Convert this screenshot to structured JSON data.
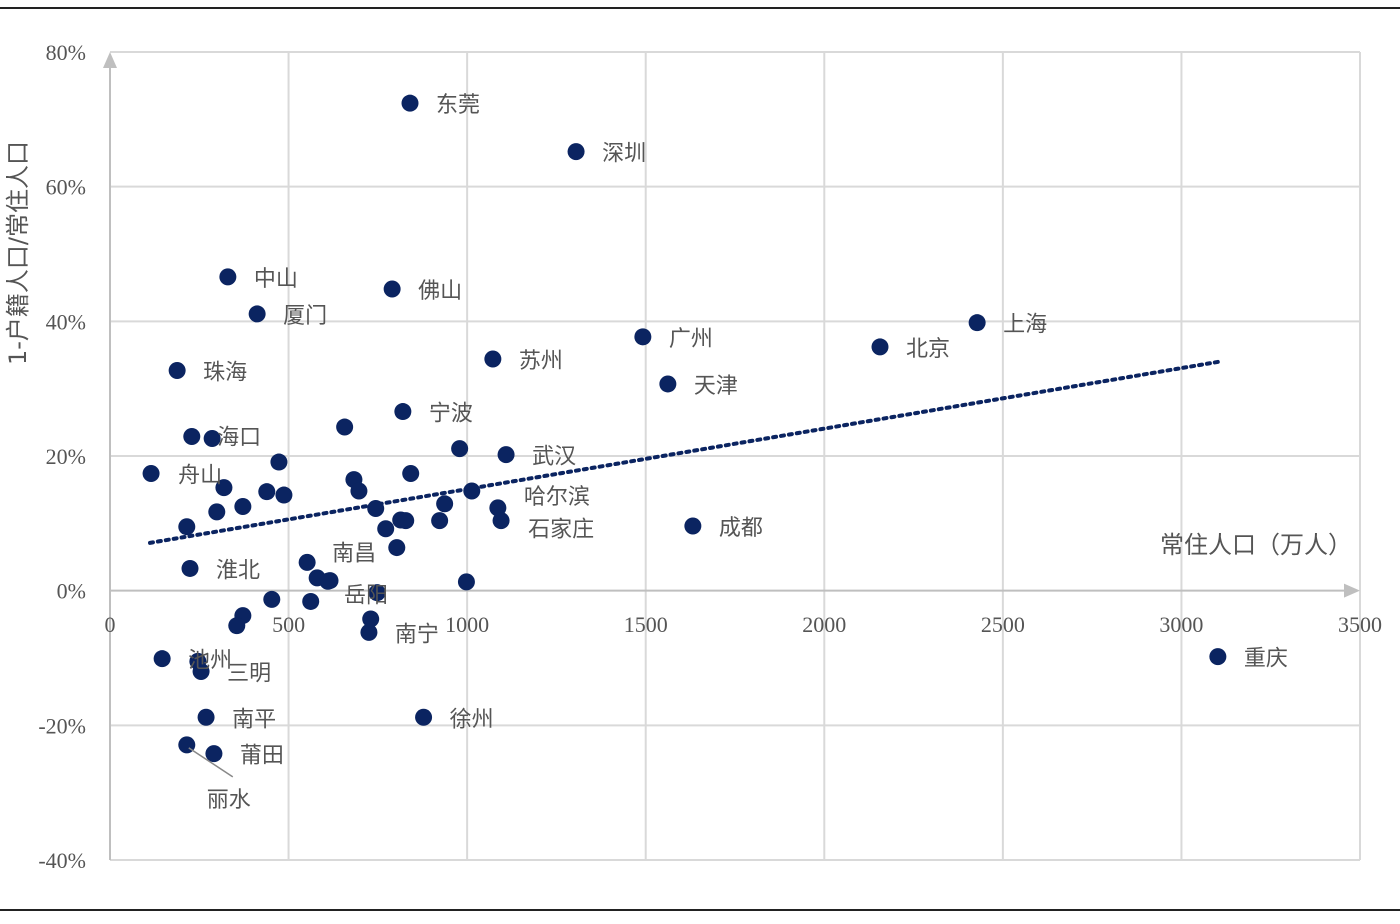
{
  "chart_data": {
    "type": "scatter",
    "title": "",
    "xlabel": "常住人口（万人）",
    "ylabel": "1-户籍人口/常住人口",
    "xlim": [
      0,
      3500
    ],
    "ylim": [
      -40,
      80
    ],
    "x_ticks": [
      "0",
      "500",
      "1000",
      "1500",
      "2000",
      "2500",
      "3000",
      "3500"
    ],
    "x_tick_values": [
      0,
      500,
      1000,
      1500,
      2000,
      2500,
      3000,
      3500
    ],
    "y_ticks": [
      "-40%",
      "-20%",
      "0%",
      "20%",
      "40%",
      "60%",
      "80%"
    ],
    "y_tick_values": [
      -40,
      -20,
      0,
      20,
      40,
      60,
      80
    ],
    "grid": true,
    "marker_color": "#0b2461",
    "grid_color": "#d9d9d9",
    "axis_color": "#bfbfbf",
    "trendline": {
      "type": "linear",
      "style": "dotted",
      "x": [
        112,
        3105
      ],
      "y": [
        7.1,
        34.0
      ]
    },
    "points": [
      {
        "name": "东莞",
        "x": 840,
        "y": 72.4
      },
      {
        "name": "深圳",
        "x": 1305,
        "y": 65.2
      },
      {
        "name": "中山",
        "x": 330,
        "y": 46.6
      },
      {
        "name": "佛山",
        "x": 790,
        "y": 44.8
      },
      {
        "name": "厦门",
        "x": 412,
        "y": 41.1
      },
      {
        "name": "广州",
        "x": 1492,
        "y": 37.7
      },
      {
        "name": "上海",
        "x": 2428,
        "y": 39.8
      },
      {
        "name": "北京",
        "x": 2156,
        "y": 36.2
      },
      {
        "name": "苏州",
        "x": 1072,
        "y": 34.4
      },
      {
        "name": "珠海",
        "x": 188,
        "y": 32.7
      },
      {
        "name": "天津",
        "x": 1562,
        "y": 30.7
      },
      {
        "name": "宁波",
        "x": 820,
        "y": 26.6
      },
      {
        "name": "海口",
        "x": 286,
        "y": 22.6
      },
      {
        "name": "武汉",
        "x": 1109,
        "y": 20.2
      },
      {
        "name": "舟山",
        "x": 115,
        "y": 17.4
      },
      {
        "name": "哈尔滨",
        "x": 1086,
        "y": 12.3
      },
      {
        "name": "石家庄",
        "x": 1095,
        "y": 10.4
      },
      {
        "name": "成都",
        "x": 1632,
        "y": 9.6
      },
      {
        "name": "淮北",
        "x": 224,
        "y": 3.3
      },
      {
        "name": "南昌",
        "x": 552,
        "y": 4.2
      },
      {
        "name": "岳阳",
        "x": 616,
        "y": 1.5
      },
      {
        "name": "南宁",
        "x": 725,
        "y": -6.2
      },
      {
        "name": "池州",
        "x": 146,
        "y": -10.1
      },
      {
        "name": "三明",
        "x": 255,
        "y": -12.0
      },
      {
        "name": "重庆",
        "x": 3102,
        "y": -9.8
      },
      {
        "name": "南平",
        "x": 269,
        "y": -18.8
      },
      {
        "name": "徐州",
        "x": 878,
        "y": -18.8
      },
      {
        "name": "莆田",
        "x": 291,
        "y": -24.2
      },
      {
        "name": "丽水",
        "x": 215,
        "y": -22.9
      },
      {
        "name": "",
        "x": 229,
        "y": 22.9
      },
      {
        "name": "",
        "x": 473,
        "y": 19.1
      },
      {
        "name": "",
        "x": 657,
        "y": 24.3
      },
      {
        "name": "",
        "x": 979,
        "y": 21.1
      },
      {
        "name": "",
        "x": 319,
        "y": 15.3
      },
      {
        "name": "",
        "x": 439,
        "y": 14.7
      },
      {
        "name": "",
        "x": 487,
        "y": 14.2
      },
      {
        "name": "",
        "x": 299,
        "y": 11.7
      },
      {
        "name": "",
        "x": 372,
        "y": 12.5
      },
      {
        "name": "",
        "x": 215,
        "y": 9.5
      },
      {
        "name": "",
        "x": 683,
        "y": 16.5
      },
      {
        "name": "",
        "x": 697,
        "y": 14.8
      },
      {
        "name": "",
        "x": 842,
        "y": 17.4
      },
      {
        "name": "",
        "x": 744,
        "y": 12.2
      },
      {
        "name": "",
        "x": 937,
        "y": 12.9
      },
      {
        "name": "",
        "x": 1013,
        "y": 14.8
      },
      {
        "name": "",
        "x": 772,
        "y": 9.2
      },
      {
        "name": "",
        "x": 814,
        "y": 10.5
      },
      {
        "name": "",
        "x": 828,
        "y": 10.4
      },
      {
        "name": "",
        "x": 923,
        "y": 10.4
      },
      {
        "name": "",
        "x": 803,
        "y": 6.4
      },
      {
        "name": "",
        "x": 580,
        "y": 1.9
      },
      {
        "name": "",
        "x": 610,
        "y": 1.4
      },
      {
        "name": "",
        "x": 748,
        "y": -0.3
      },
      {
        "name": "",
        "x": 998,
        "y": 1.3
      },
      {
        "name": "",
        "x": 453,
        "y": -1.3
      },
      {
        "name": "",
        "x": 562,
        "y": -1.6
      },
      {
        "name": "",
        "x": 372,
        "y": -3.7
      },
      {
        "name": "",
        "x": 355,
        "y": -5.2
      },
      {
        "name": "",
        "x": 730,
        "y": -4.2
      },
      {
        "name": "",
        "x": 246,
        "y": -10.5
      }
    ]
  }
}
